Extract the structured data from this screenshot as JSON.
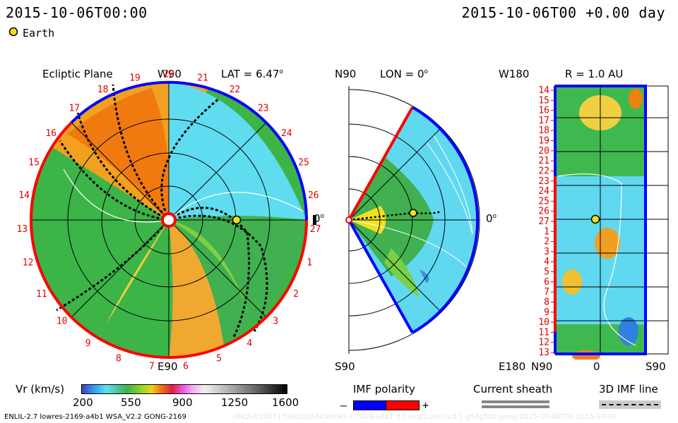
{
  "header": {
    "left_time": "2015-10-06T00:00",
    "right_time": "2015-10-06T00 +0.00 day"
  },
  "legend": {
    "earth_label": "Earth"
  },
  "ecliptic": {
    "title": "Ecliptic Plane",
    "top_label": "W90",
    "bottom_label": "E90",
    "right_label": "0",
    "lat_label": "LAT = 6.47",
    "carrington_ticks": [
      "20",
      "21",
      "22",
      "23",
      "24",
      "25",
      "26",
      "27",
      "1",
      "2",
      "3",
      "4",
      "5",
      "6",
      "7",
      "8",
      "9",
      "10",
      "11",
      "12",
      "13",
      "14",
      "15",
      "16",
      "17",
      "18",
      "19"
    ]
  },
  "meridional": {
    "top_label": "N90",
    "bottom_label": "S90",
    "lon_label": "LON = 0",
    "right_label": "0"
  },
  "sphere": {
    "title": "R = 1.0 AU",
    "top_left_label": "W180",
    "bottom_left_label": "E180",
    "rows": [
      "14",
      "15",
      "16",
      "17",
      "18",
      "19",
      "20",
      "21",
      "22",
      "23",
      "24",
      "25",
      "26",
      "27",
      "1",
      "2",
      "3",
      "4",
      "5",
      "6",
      "7",
      "8",
      "9",
      "10",
      "11",
      "12",
      "13"
    ],
    "x_labels": [
      "N90",
      "0",
      "S90"
    ]
  },
  "colorbar": {
    "label": "Vr (km/s)",
    "ticks": [
      "200",
      "550",
      "900",
      "1250",
      "1600"
    ]
  },
  "imf_polarity": {
    "label": "IMF polarity",
    "minus": "–",
    "plus": "+"
  },
  "current_sheath": {
    "label": "Current sheath"
  },
  "imf_line": {
    "label": "3D IMF line"
  },
  "footer": {
    "model": "ENLIL-2.7 lowres-2169-a4b1 WSA_V2.2 GONG-2169",
    "run_id": "UNQUE1007170401/256x30x90-1-2169-a4b1-32-mcp1umn1cd-1-g53g5bz-gong-2015-10-06T00   2015-10-07"
  },
  "colors": {
    "earth": "#f0e020",
    "polarity_negative": "#0000ff",
    "polarity_positive": "#ff0000"
  }
}
